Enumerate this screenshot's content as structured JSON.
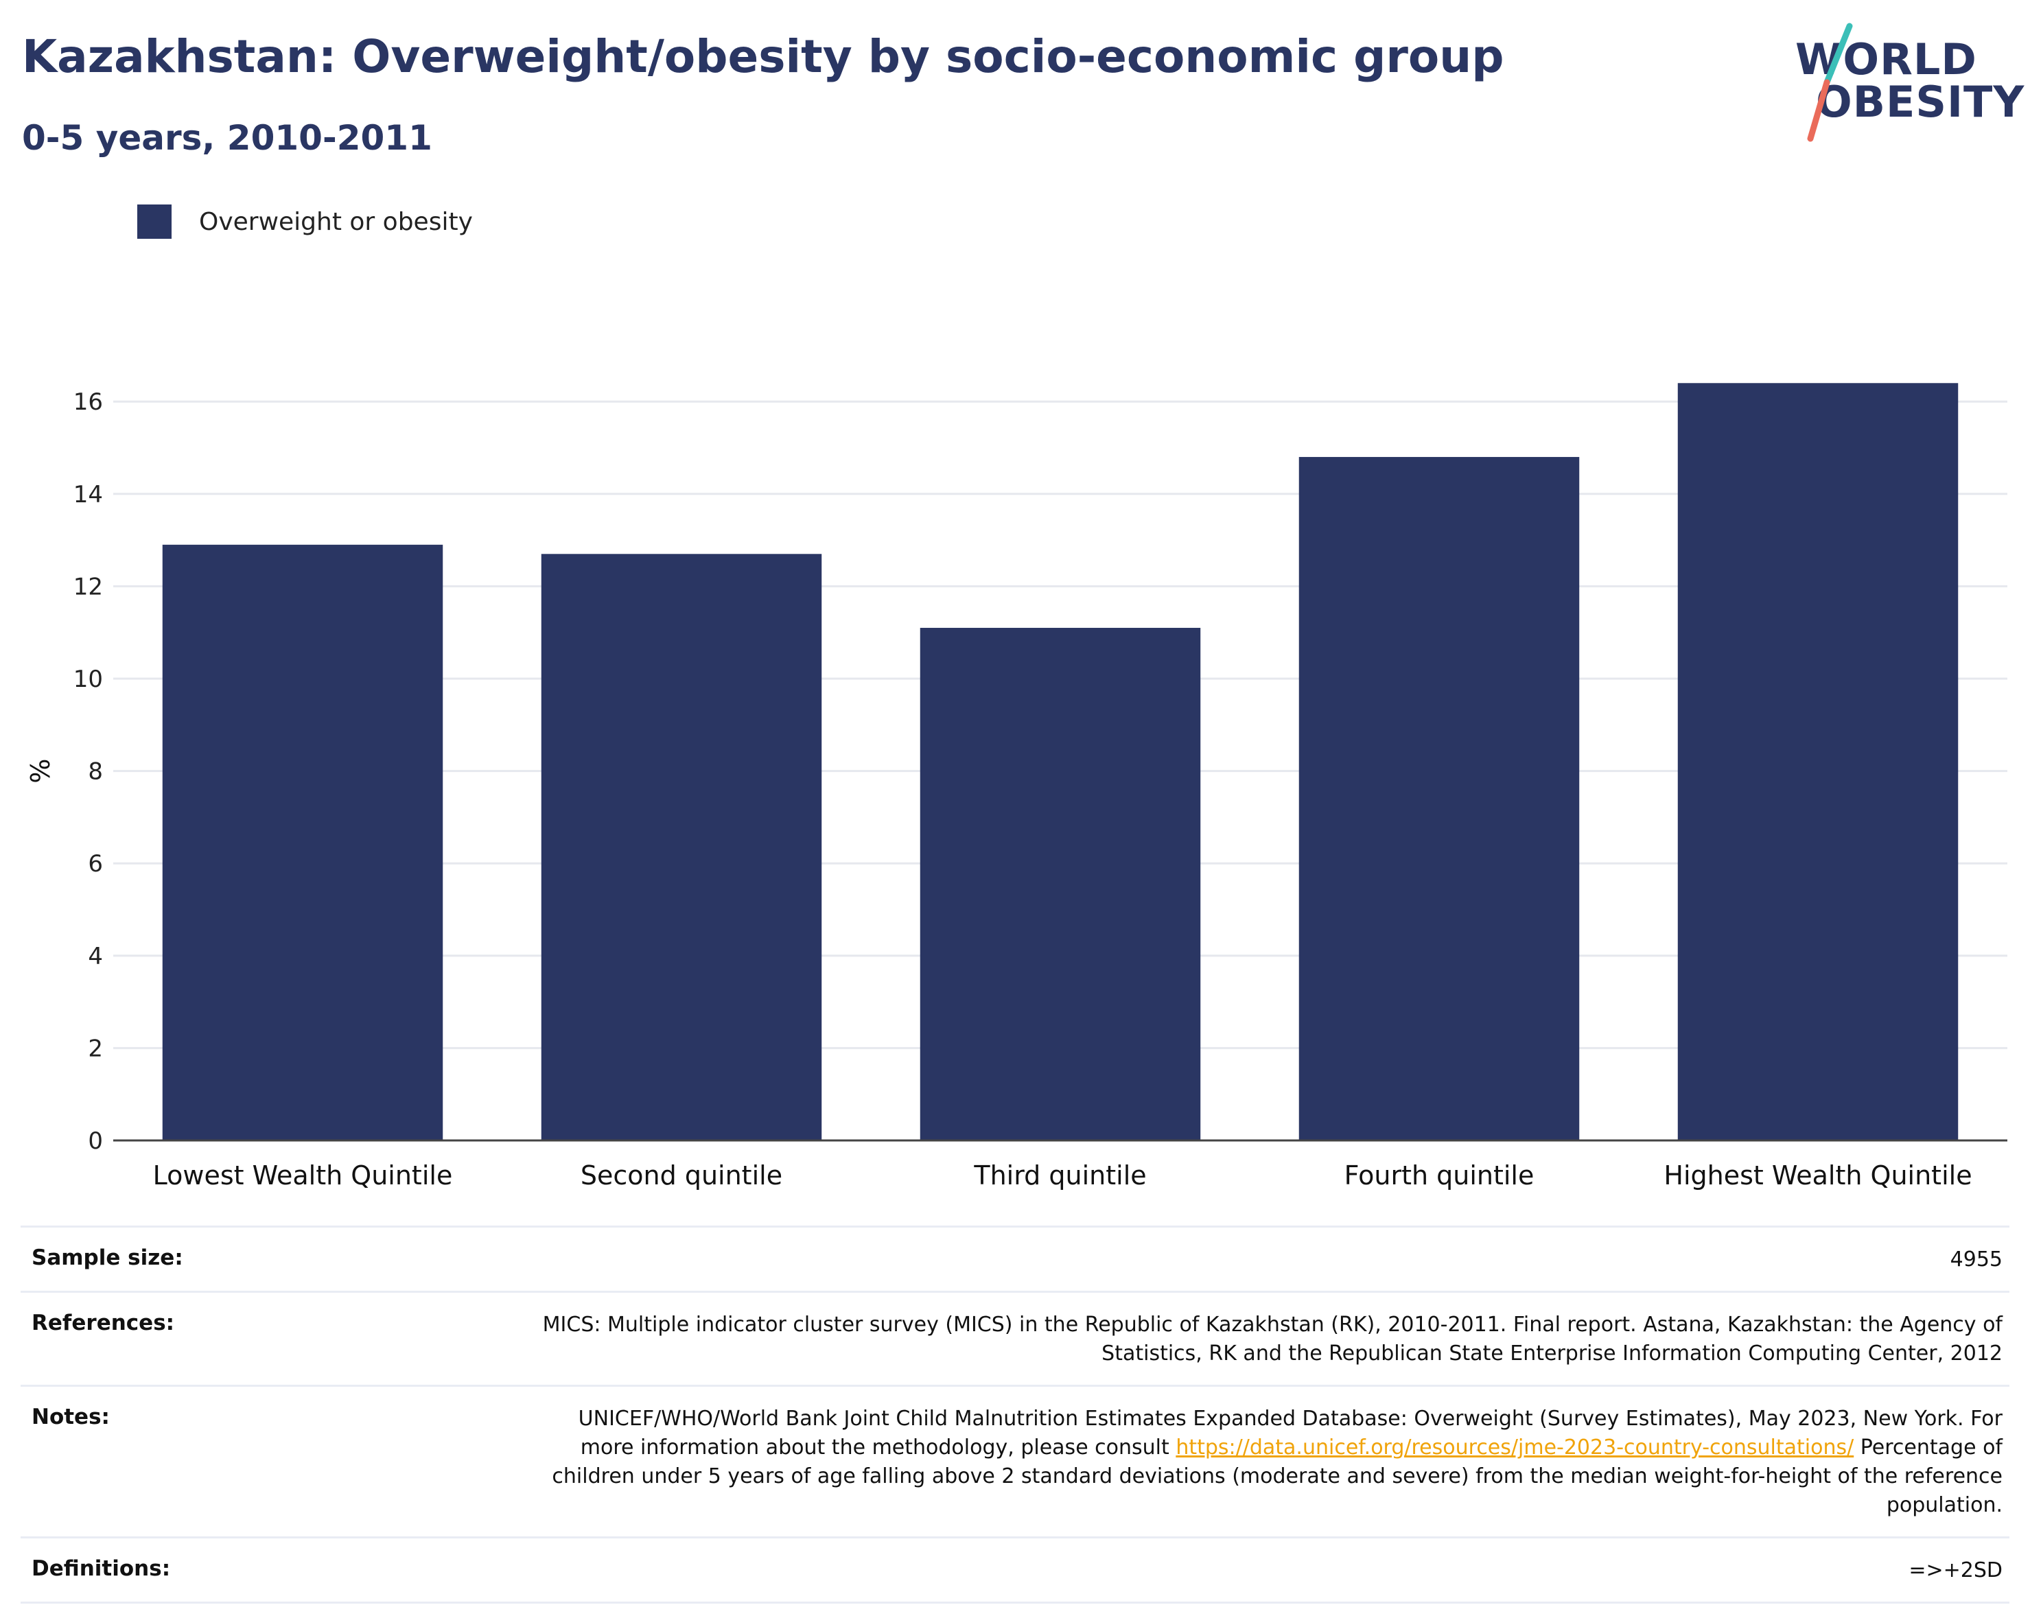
{
  "header": {
    "title": "Kazakhstan: Overweight/obesity by socio-economic group",
    "subtitle": "0-5 years, 2010-2011"
  },
  "logo": {
    "line1": "WORLD",
    "line2": "OBESITY",
    "colors": {
      "text": "#2a3663",
      "slash_top": "#3bbfb8",
      "slash_bottom": "#ea6b5a"
    }
  },
  "legend": {
    "label": "Overweight or obesity",
    "color": "#2a3663"
  },
  "chart_data": {
    "type": "bar",
    "title": "Kazakhstan: Overweight/obesity by socio-economic group",
    "subtitle": "0-5 years, 2010-2011",
    "categories": [
      "Lowest Wealth Quintile",
      "Second quintile",
      "Third quintile",
      "Fourth quintile",
      "Highest Wealth Quintile"
    ],
    "series": [
      {
        "name": "Overweight or obesity",
        "values": [
          12.9,
          12.7,
          11.1,
          14.8,
          16.4
        ],
        "color": "#2a3663"
      }
    ],
    "xlabel": "",
    "ylabel": "%",
    "ylim": [
      0,
      17
    ],
    "yticks": [
      0,
      2,
      4,
      6,
      8,
      10,
      12,
      14,
      16
    ],
    "grid": true,
    "legend_position": "top-left"
  },
  "info": {
    "sample_size": {
      "label": "Sample size:",
      "value": "4955"
    },
    "references": {
      "label": "References:",
      "value": "MICS: Multiple indicator cluster survey (MICS) in the Republic of Kazakhstan (RK), 2010-2011. Final report. Astana, Kazakhstan: the Agency of Statistics, RK and the Republican State Enterprise Information Computing Center, 2012"
    },
    "notes": {
      "label": "Notes:",
      "text_before": "UNICEF/WHO/World Bank Joint Child Malnutrition Estimates Expanded Database: Overweight (Survey Estimates), May 2023, New York. For more information about the methodology, please consult ",
      "link": "https://data.unicef.org/resources/jme-2023-country-consultations/",
      "text_after": " Percentage of children under 5 years of age falling above 2 standard deviations (moderate and severe) from the median weight-for-height of the reference population."
    },
    "definitions": {
      "label": "Definitions:",
      "value": "=>+2SD"
    }
  }
}
